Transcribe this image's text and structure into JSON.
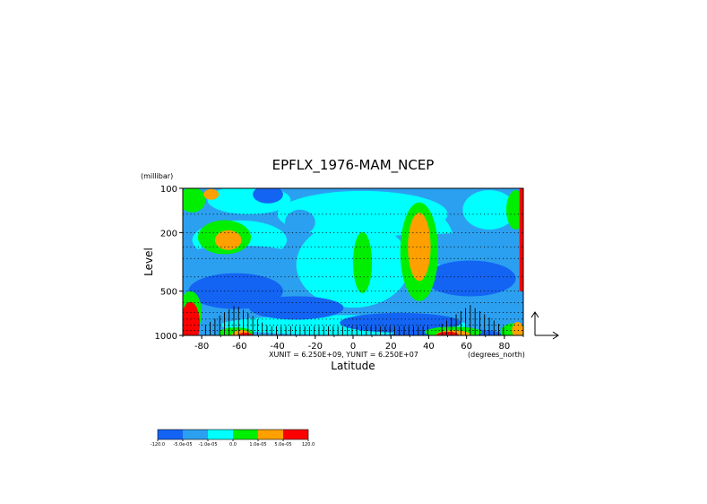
{
  "chart_data": {
    "type": "heatmap",
    "title": "EPFLX_1976-MAM_NCEP",
    "xlabel": "Latitude",
    "ylabel": "Level",
    "y_unit": "(millibar)",
    "x_unit": "(degrees_north)",
    "unit_note": "XUNIT = 6.250E+09, YUNIT = 6.250E+07",
    "x_range": [
      -90,
      90
    ],
    "y_range": [
      1000,
      100
    ],
    "y_scale": "log",
    "x_ticks": [
      {
        "value": -80,
        "label": "-80"
      },
      {
        "value": -60,
        "label": "-60"
      },
      {
        "value": -40,
        "label": "-40"
      },
      {
        "value": -20,
        "label": "-20"
      },
      {
        "value": 0,
        "label": "0"
      },
      {
        "value": 20,
        "label": "20"
      },
      {
        "value": 40,
        "label": "40"
      },
      {
        "value": 60,
        "label": "60"
      },
      {
        "value": 80,
        "label": "80"
      }
    ],
    "y_ticks": [
      {
        "value": 100,
        "label": "100"
      },
      {
        "value": 200,
        "label": "200"
      },
      {
        "value": 500,
        "label": "500"
      },
      {
        "value": 1000,
        "label": "1000"
      }
    ],
    "grid_levels": [
      100,
      150,
      200,
      250,
      300,
      400,
      500,
      600,
      700,
      775,
      850,
      925,
      1000
    ],
    "legend": {
      "placement": "bottom-left",
      "bins": [
        {
          "color": "#1464f4",
          "label": "-120.0"
        },
        {
          "color": "#2ca0f0",
          "label": "-5.0e-05"
        },
        {
          "color": "#00ffff",
          "label": "-1.0e-05"
        },
        {
          "color": "#00ee00",
          "label": "0.0"
        },
        {
          "color": "#ffa000",
          "label": "1.0e-05"
        },
        {
          "color": "#ff0000",
          "label": "5.0e-05"
        }
      ],
      "end_label": "120.0"
    },
    "colors": {
      "background_field": "#2ca0f0",
      "strong_negative": "#1464f4",
      "weak_negative": "#00ffff",
      "weak_positive": "#00ee00",
      "positive": "#ffa000",
      "strong_positive": "#ff0000"
    },
    "grid": "dotted horizontal lines at pressure levels",
    "vector_reference": "arrows at right"
  }
}
